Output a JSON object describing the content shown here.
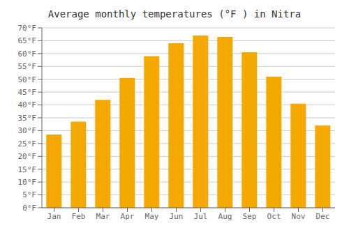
{
  "chart_data": {
    "type": "bar",
    "title": "Average monthly temperatures (°F ) in Nitra",
    "categories": [
      "Jan",
      "Feb",
      "Mar",
      "Apr",
      "May",
      "Jun",
      "Jul",
      "Aug",
      "Sep",
      "Oct",
      "Nov",
      "Dec"
    ],
    "values": [
      28.5,
      33.5,
      42.0,
      50.5,
      59.0,
      64.0,
      67.0,
      66.5,
      60.5,
      51.0,
      40.5,
      32.0
    ],
    "color": "#F5A800",
    "ylim": [
      0,
      70
    ],
    "yticks": [
      {
        "value": 0,
        "label": "0°F"
      },
      {
        "value": 5,
        "label": "5°F"
      },
      {
        "value": 10,
        "label": "10°F"
      },
      {
        "value": 15,
        "label": "15°F"
      },
      {
        "value": 20,
        "label": "20°F"
      },
      {
        "value": 25,
        "label": "25°F"
      },
      {
        "value": 30,
        "label": "30°F"
      },
      {
        "value": 35,
        "label": "35°F"
      },
      {
        "value": 40,
        "label": "40°F"
      },
      {
        "value": 45,
        "label": "45°F"
      },
      {
        "value": 50,
        "label": "50°F"
      },
      {
        "value": 55,
        "label": "55°F"
      },
      {
        "value": 60,
        "label": "60°F"
      },
      {
        "value": 65,
        "label": "65°F"
      },
      {
        "value": 70,
        "label": "70°F"
      }
    ],
    "grid": true
  }
}
